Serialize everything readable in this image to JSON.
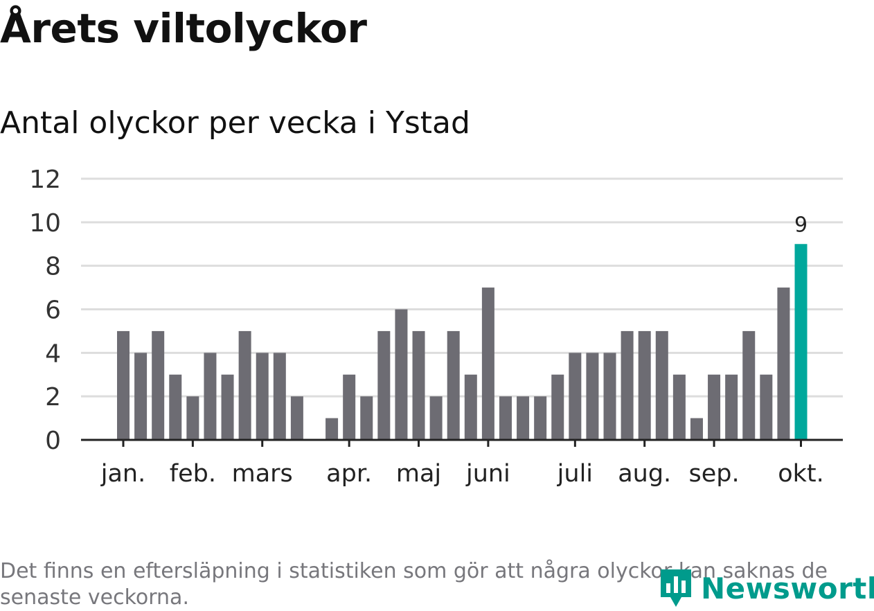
{
  "title": "Årets viltolyckor",
  "subtitle": "Antal olyckor per vecka i Ystad",
  "footnote": "Det finns en eftersläpning i statistiken som gör att några olyckor kan saknas de senaste veckorna.",
  "logo_text": "Newsworthy",
  "colors": {
    "bar": "#6d6c73",
    "highlight": "#00a89c",
    "grid": "#dddddd",
    "axis": "#222222",
    "logo": "#009b8c"
  },
  "chart_data": {
    "type": "bar",
    "title": "Antal olyckor per vecka i Ystad",
    "xlabel": "",
    "ylabel": "",
    "ylim": [
      0,
      12
    ],
    "y_ticks": [
      0,
      2,
      4,
      6,
      8,
      10,
      12
    ],
    "grid": true,
    "weeks": [
      1,
      2,
      3,
      4,
      5,
      6,
      7,
      8,
      9,
      10,
      11,
      12,
      13,
      14,
      15,
      16,
      17,
      18,
      19,
      20,
      21,
      22,
      23,
      24,
      25,
      26,
      27,
      28,
      29,
      30,
      31,
      32,
      33,
      34,
      35,
      36,
      37,
      38,
      39,
      40
    ],
    "values": [
      5,
      4,
      5,
      3,
      2,
      4,
      3,
      5,
      4,
      4,
      2,
      0,
      1,
      3,
      2,
      5,
      6,
      5,
      2,
      5,
      3,
      7,
      2,
      2,
      2,
      3,
      4,
      4,
      4,
      5,
      5,
      5,
      3,
      1,
      3,
      3,
      5,
      3,
      7,
      9
    ],
    "highlight_index": 39,
    "highlight_label": "9",
    "month_labels": [
      {
        "label": "jan.",
        "week": 1
      },
      {
        "label": "feb.",
        "week": 5
      },
      {
        "label": "mars",
        "week": 9
      },
      {
        "label": "apr.",
        "week": 14
      },
      {
        "label": "maj",
        "week": 18
      },
      {
        "label": "juni",
        "week": 22
      },
      {
        "label": "juli",
        "week": 27
      },
      {
        "label": "aug.",
        "week": 31
      },
      {
        "label": "sep.",
        "week": 35
      },
      {
        "label": "okt.",
        "week": 40
      }
    ]
  }
}
